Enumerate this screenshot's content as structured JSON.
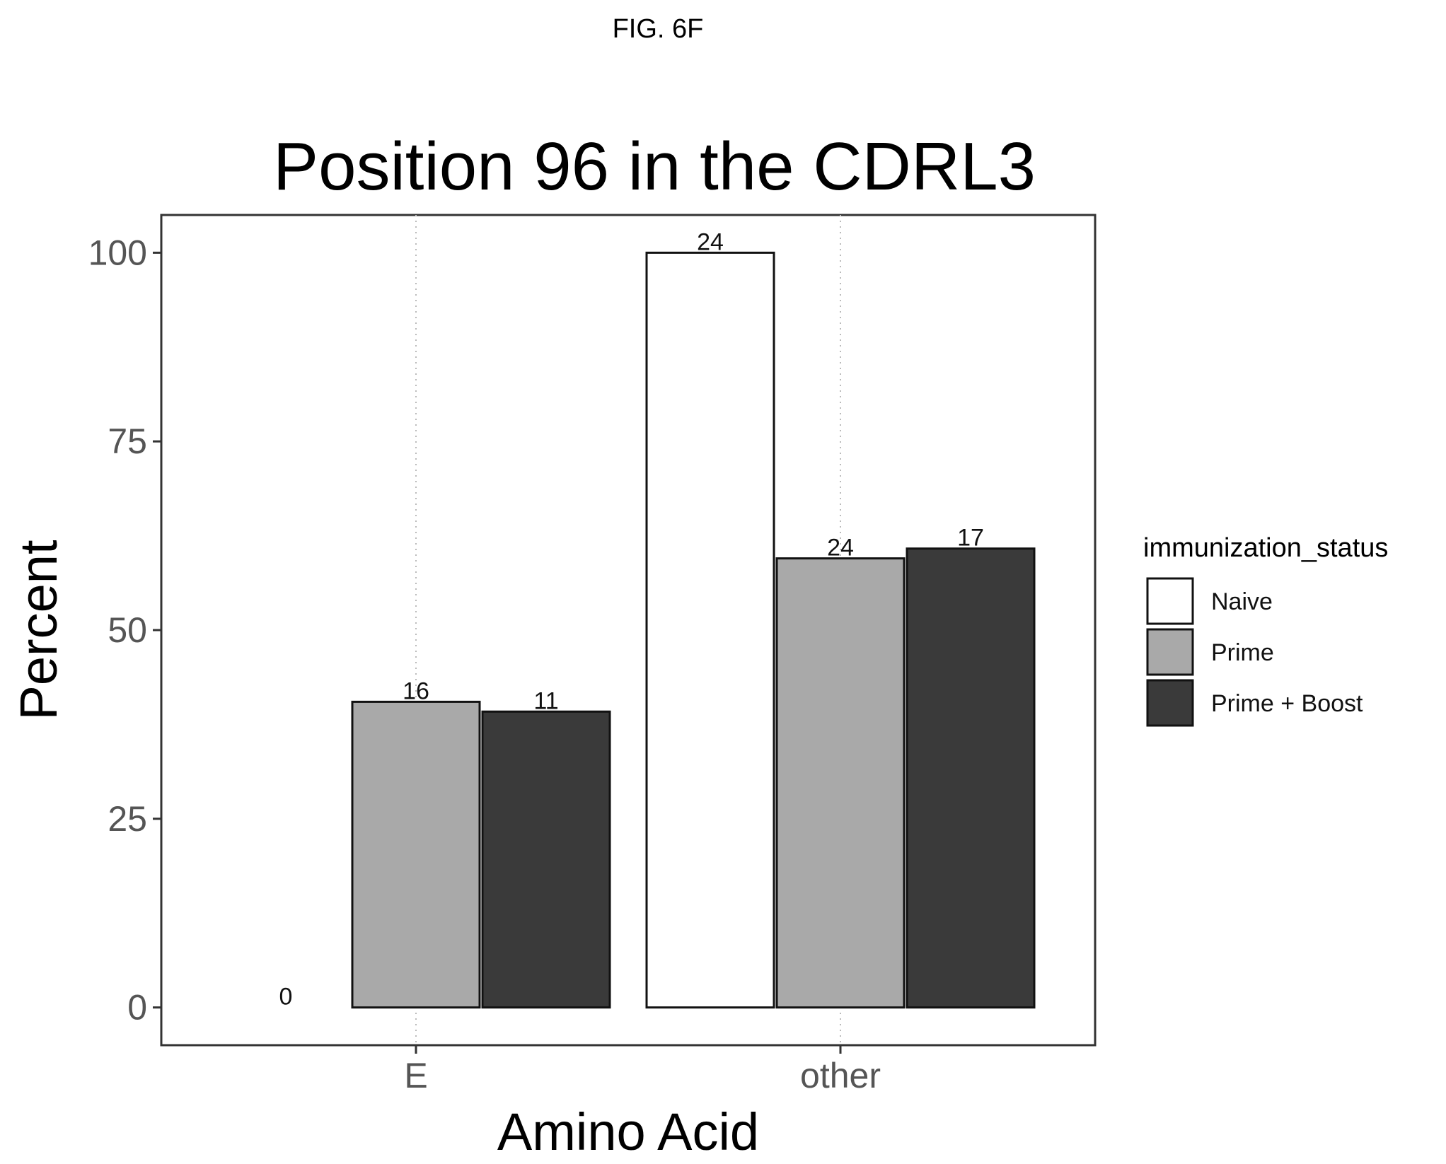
{
  "figure_label": "FIG. 6F",
  "chart_data": {
    "type": "bar",
    "title": "Position 96 in the CDRL3",
    "xlabel": "Amino Acid",
    "ylabel": "Percent",
    "categories": [
      "E",
      "other"
    ],
    "ylim": [
      -5,
      105
    ],
    "yticks": [
      0,
      25,
      50,
      75,
      100
    ],
    "grid": "vertical dotted at categories",
    "legend_title": "immunization_status",
    "legend_position": "right",
    "series": [
      {
        "name": "Naive",
        "color": "#ffffff",
        "values": [
          0,
          100
        ],
        "labels": [
          "0",
          "24"
        ]
      },
      {
        "name": "Prime",
        "color": "#a9a9a9",
        "values": [
          40.5,
          59.5
        ],
        "labels": [
          "16",
          "24"
        ]
      },
      {
        "name": "Prime + Boost",
        "color": "#3a3a3a",
        "values": [
          39.2,
          60.8
        ],
        "labels": [
          "11",
          "17"
        ]
      }
    ]
  }
}
